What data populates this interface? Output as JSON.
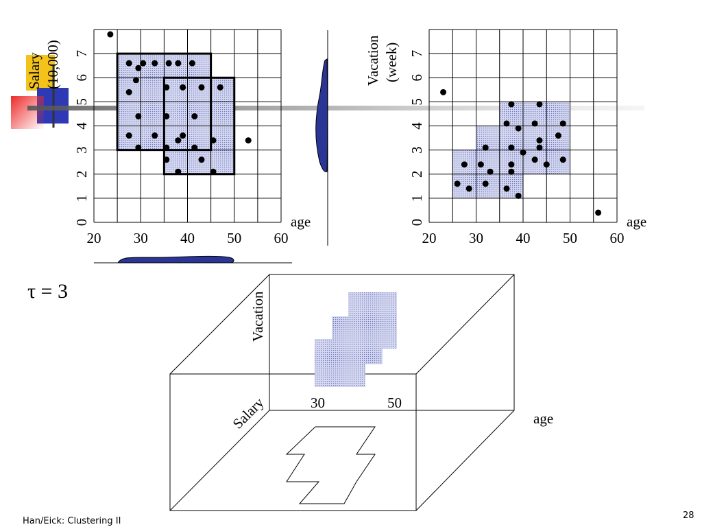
{
  "slide": {
    "footer": "Han/Eick: Clustering II",
    "page_number": "28",
    "tau_label": "τ = 3"
  },
  "chart_data": [
    {
      "type": "scatter",
      "id": "salary_vs_age",
      "xlabel": "age",
      "ylabel_line1": "Salary",
      "ylabel_line2": "(10,000)",
      "xlim": [
        20,
        60
      ],
      "ylim": [
        0,
        8
      ],
      "x_ticks": [
        "20",
        "30",
        "40",
        "50",
        "60"
      ],
      "y_ticks": [
        "0",
        "1",
        "2",
        "3",
        "4",
        "5",
        "6",
        "7"
      ],
      "grid": true,
      "points": [
        [
          23.5,
          7.8
        ],
        [
          27.5,
          6.6
        ],
        [
          29.5,
          6.4
        ],
        [
          30.5,
          6.6
        ],
        [
          33,
          6.6
        ],
        [
          36,
          6.6
        ],
        [
          38,
          6.6
        ],
        [
          41,
          6.6
        ],
        [
          27.5,
          5.4
        ],
        [
          29,
          5.9
        ],
        [
          35.5,
          5.6
        ],
        [
          39,
          5.6
        ],
        [
          43,
          5.6
        ],
        [
          47,
          5.6
        ],
        [
          29.5,
          4.4
        ],
        [
          35.5,
          4.4
        ],
        [
          41.5,
          4.4
        ],
        [
          27.5,
          3.6
        ],
        [
          33,
          3.6
        ],
        [
          29.5,
          3.1
        ],
        [
          35.5,
          3.1
        ],
        [
          38,
          3.4
        ],
        [
          39,
          3.6
        ],
        [
          41.5,
          3.1
        ],
        [
          45.5,
          3.4
        ],
        [
          35.5,
          2.6
        ],
        [
          43,
          2.6
        ],
        [
          38,
          2.1
        ],
        [
          45.5,
          2.1
        ],
        [
          53,
          3.4
        ]
      ],
      "dense_units": [
        {
          "x0": 25,
          "x1": 45,
          "y0": 3,
          "y1": 7
        },
        {
          "x0": 35,
          "x1": 50,
          "y0": 2,
          "y1": 6
        }
      ],
      "marker_level": 4.9
    },
    {
      "type": "scatter",
      "id": "vacation_vs_age",
      "xlabel": "age",
      "ylabel_line1": "Vacation",
      "ylabel_line2": "(week)",
      "xlim": [
        20,
        60
      ],
      "ylim": [
        0,
        8
      ],
      "x_ticks": [
        "20",
        "30",
        "40",
        "50",
        "60"
      ],
      "y_ticks": [
        "0",
        "1",
        "2",
        "3",
        "4",
        "5",
        "6",
        "7"
      ],
      "grid": true,
      "points": [
        [
          23,
          5.4
        ],
        [
          37.5,
          4.9
        ],
        [
          43.5,
          4.9
        ],
        [
          36.5,
          4.1
        ],
        [
          39,
          3.9
        ],
        [
          42.5,
          4.1
        ],
        [
          48.5,
          4.1
        ],
        [
          47.5,
          3.6
        ],
        [
          43.5,
          3.4
        ],
        [
          43.5,
          3.1
        ],
        [
          32,
          3.1
        ],
        [
          37.5,
          3.1
        ],
        [
          40,
          2.9
        ],
        [
          42.5,
          2.6
        ],
        [
          45,
          2.4
        ],
        [
          48.5,
          2.6
        ],
        [
          27.5,
          2.4
        ],
        [
          31,
          2.4
        ],
        [
          33,
          2.1
        ],
        [
          37.5,
          2.4
        ],
        [
          37.5,
          2.1
        ],
        [
          26,
          1.6
        ],
        [
          28.5,
          1.4
        ],
        [
          32,
          1.6
        ],
        [
          36.5,
          1.4
        ],
        [
          39,
          1.1
        ],
        [
          56,
          0.4
        ]
      ],
      "dense_units": [
        {
          "x0": 25,
          "x1": 40,
          "y0": 1,
          "y1": 3
        },
        {
          "x0": 30,
          "x1": 45,
          "y0": 2,
          "y1": 4
        },
        {
          "x0": 35,
          "x1": 50,
          "y0": 3,
          "y1": 5
        },
        {
          "x0": 40,
          "x1": 50,
          "y0": 2,
          "y1": 3
        }
      ]
    }
  ],
  "cube_diagram": {
    "vacation_label": "Vacation",
    "salary_label": "Salary",
    "age_label": "age",
    "tick_30": "30",
    "tick_50": "50"
  },
  "colors": {
    "dense_fill": "#c9cde9",
    "dense_dot": "#6f7ac4",
    "blob_fill": "#2a3596",
    "marker_yellow": "#f3c31c",
    "marker_red": "#ee2a2a",
    "marker_blue": "#2e3ab5"
  }
}
